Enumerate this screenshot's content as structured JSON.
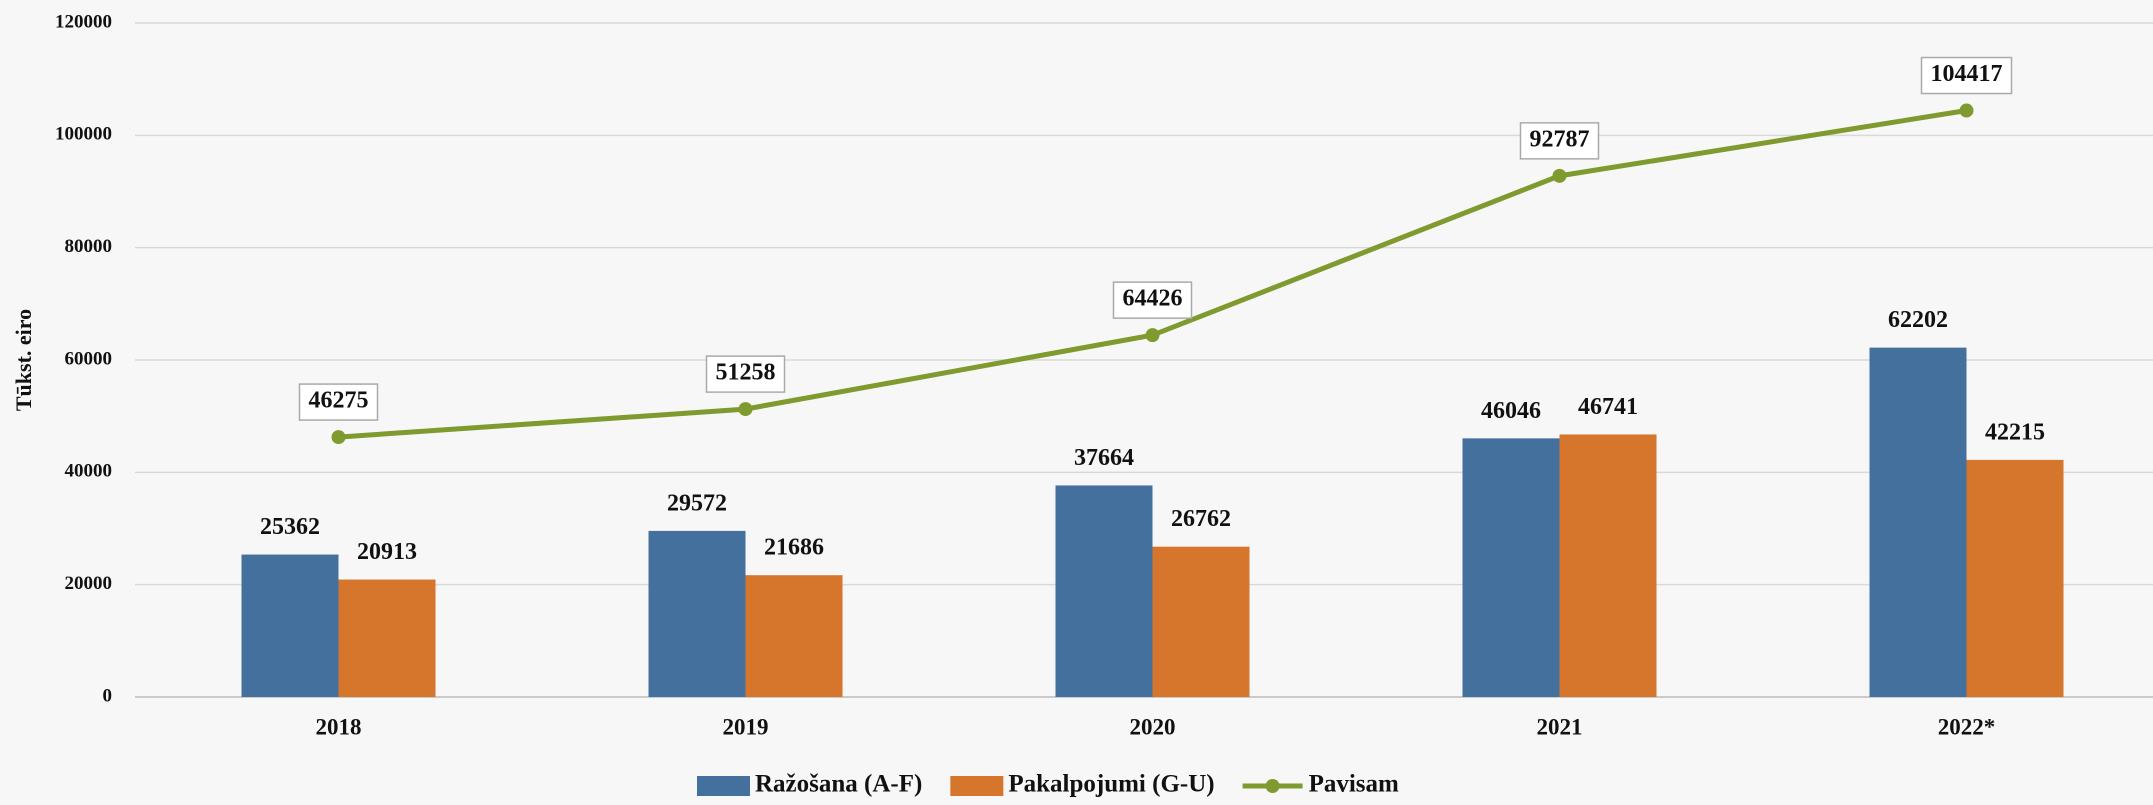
{
  "chart_data": {
    "type": "bar",
    "y_label": "Tūkst. eiro",
    "categories": [
      "2018",
      "2019",
      "2020",
      "2021",
      "2022*"
    ],
    "series": [
      {
        "name": "Ražošana (A-F)",
        "color": "#44709d",
        "values": [
          25362,
          29572,
          37664,
          46046,
          62202
        ]
      },
      {
        "name": "Pakalpojumi (G-U)",
        "color": "#d6762d",
        "values": [
          20913,
          21686,
          26762,
          46741,
          42215
        ]
      },
      {
        "name": "Pavisam",
        "type": "line",
        "color": "#7f9a2e",
        "values": [
          46275,
          51258,
          64426,
          92787,
          104417
        ]
      }
    ],
    "ylim": [
      0,
      120000
    ],
    "yticks": [
      0,
      20000,
      40000,
      60000,
      80000,
      100000,
      120000
    ],
    "grid": true,
    "legend": "bottom"
  }
}
